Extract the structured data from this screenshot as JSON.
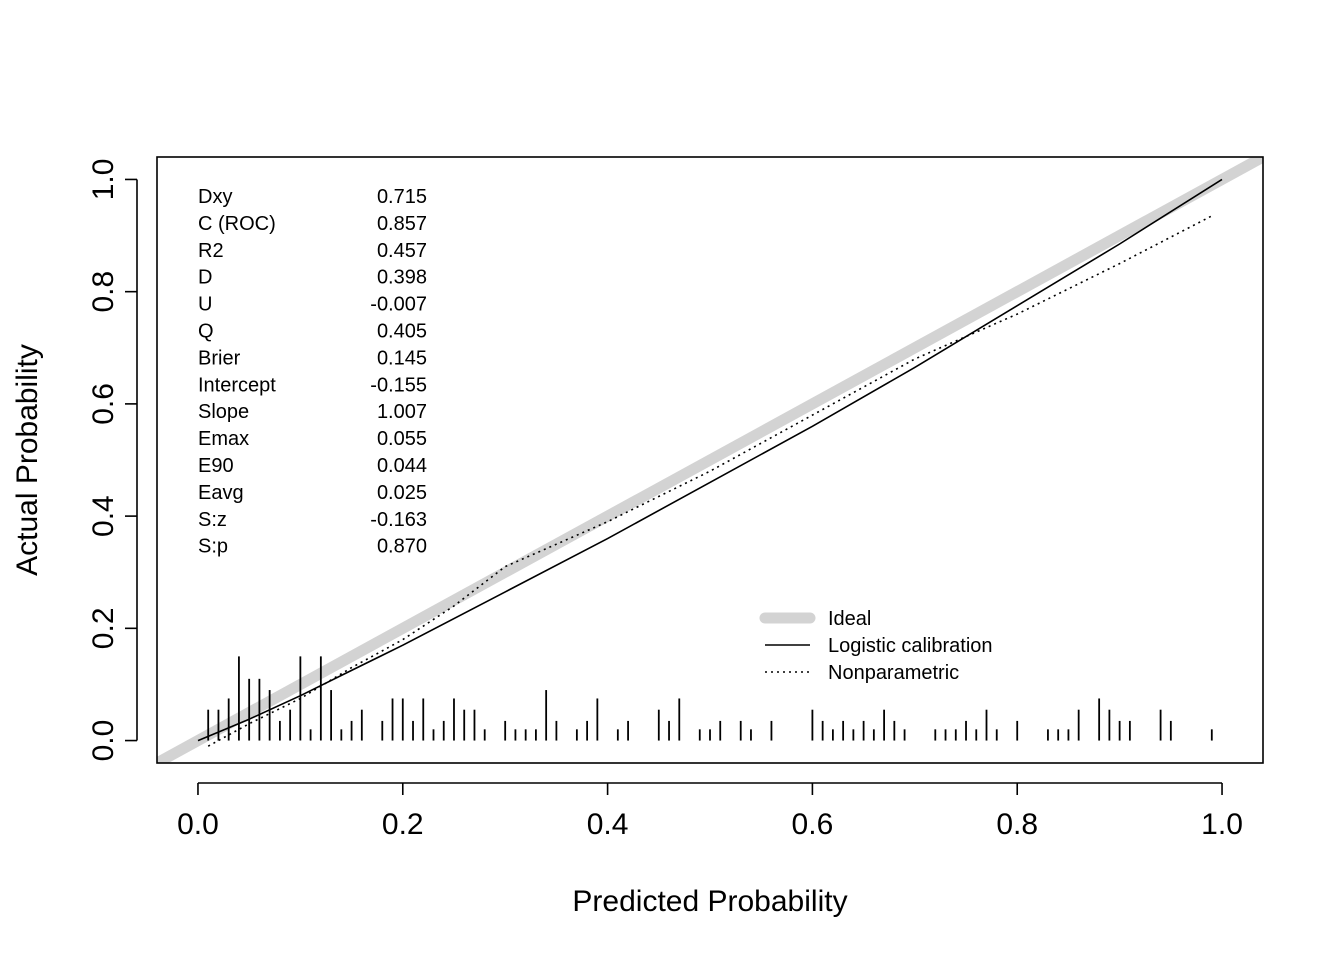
{
  "chart_data": {
    "type": "line",
    "title": "",
    "xlabel": "Predicted Probability",
    "ylabel": "Actual Probability",
    "xlim": [
      -0.04,
      1.04
    ],
    "ylim": [
      -0.04,
      1.04
    ],
    "x_ticks": [
      "0.0",
      "0.2",
      "0.4",
      "0.6",
      "0.8",
      "1.0"
    ],
    "y_ticks": [
      "0.0",
      "0.2",
      "0.4",
      "0.6",
      "0.8",
      "1.0"
    ],
    "grid": false,
    "legend_position": "bottom-right",
    "legend": [
      {
        "label": "Ideal",
        "style": "thick-gray"
      },
      {
        "label": "Logistic calibration",
        "style": "solid"
      },
      {
        "label": "Nonparametric",
        "style": "dotted"
      }
    ],
    "series": [
      {
        "name": "Ideal",
        "color": "#d3d3d3",
        "x": [
          -0.04,
          1.04
        ],
        "y": [
          -0.04,
          1.04
        ]
      },
      {
        "name": "Logistic calibration",
        "color": "#000000",
        "x": [
          0.0,
          0.05,
          0.1,
          0.15,
          0.2,
          0.3,
          0.4,
          0.5,
          0.6,
          0.7,
          0.8,
          0.9,
          1.0
        ],
        "y": [
          0.0,
          0.038,
          0.08,
          0.125,
          0.17,
          0.265,
          0.36,
          0.46,
          0.56,
          0.665,
          0.775,
          0.885,
          1.0
        ]
      },
      {
        "name": "Nonparametric",
        "color": "#000000",
        "x": [
          0.01,
          0.03,
          0.05,
          0.1,
          0.15,
          0.2,
          0.25,
          0.3,
          0.35,
          0.4,
          0.5,
          0.6,
          0.7,
          0.8,
          0.9,
          0.99
        ],
        "y": [
          -0.01,
          0.01,
          0.03,
          0.075,
          0.13,
          0.18,
          0.24,
          0.31,
          0.35,
          0.39,
          0.48,
          0.58,
          0.68,
          0.76,
          0.85,
          0.935
        ]
      }
    ],
    "histogram_ticks": {
      "x": [
        0.01,
        0.02,
        0.03,
        0.04,
        0.05,
        0.06,
        0.07,
        0.08,
        0.09,
        0.1,
        0.11,
        0.12,
        0.13,
        0.14,
        0.15,
        0.16,
        0.18,
        0.19,
        0.2,
        0.21,
        0.22,
        0.23,
        0.24,
        0.25,
        0.26,
        0.27,
        0.28,
        0.3,
        0.31,
        0.32,
        0.33,
        0.34,
        0.35,
        0.37,
        0.38,
        0.39,
        0.41,
        0.42,
        0.45,
        0.46,
        0.47,
        0.49,
        0.5,
        0.51,
        0.53,
        0.54,
        0.56,
        0.6,
        0.61,
        0.62,
        0.63,
        0.64,
        0.65,
        0.66,
        0.67,
        0.68,
        0.69,
        0.72,
        0.73,
        0.74,
        0.75,
        0.76,
        0.77,
        0.78,
        0.8,
        0.83,
        0.84,
        0.85,
        0.86,
        0.88,
        0.89,
        0.9,
        0.91,
        0.94,
        0.95,
        0.99
      ],
      "h": [
        0.055,
        0.055,
        0.075,
        0.15,
        0.11,
        0.11,
        0.09,
        0.035,
        0.055,
        0.15,
        0.02,
        0.15,
        0.09,
        0.02,
        0.035,
        0.055,
        0.035,
        0.075,
        0.075,
        0.035,
        0.075,
        0.02,
        0.035,
        0.075,
        0.055,
        0.055,
        0.02,
        0.035,
        0.02,
        0.02,
        0.02,
        0.09,
        0.035,
        0.02,
        0.035,
        0.075,
        0.02,
        0.035,
        0.055,
        0.035,
        0.075,
        0.02,
        0.02,
        0.035,
        0.035,
        0.02,
        0.035,
        0.055,
        0.035,
        0.02,
        0.035,
        0.02,
        0.035,
        0.02,
        0.055,
        0.035,
        0.02,
        0.02,
        0.02,
        0.02,
        0.035,
        0.02,
        0.055,
        0.02,
        0.035,
        0.02,
        0.02,
        0.02,
        0.055,
        0.075,
        0.055,
        0.035,
        0.035,
        0.055,
        0.035,
        0.02
      ]
    },
    "stats": [
      {
        "label": "Dxy",
        "value": "0.715"
      },
      {
        "label": "C (ROC)",
        "value": "0.857"
      },
      {
        "label": "R2",
        "value": "0.457"
      },
      {
        "label": "D",
        "value": "0.398"
      },
      {
        "label": "U",
        "value": "-0.007"
      },
      {
        "label": "Q",
        "value": "0.405"
      },
      {
        "label": "Brier",
        "value": "0.145"
      },
      {
        "label": "Intercept",
        "value": "-0.155"
      },
      {
        "label": "Slope",
        "value": "1.007"
      },
      {
        "label": "Emax",
        "value": "0.055"
      },
      {
        "label": "E90",
        "value": "0.044"
      },
      {
        "label": "Eavg",
        "value": "0.025"
      },
      {
        "label": "S:z",
        "value": "-0.163"
      },
      {
        "label": "S:p",
        "value": "0.870"
      }
    ]
  }
}
